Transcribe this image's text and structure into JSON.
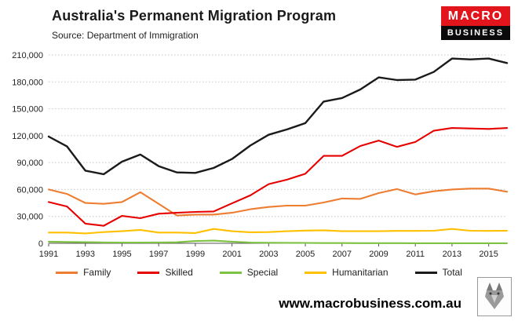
{
  "header": {
    "title": "Australia's Permanent Migration Program",
    "subtitle": "Source: Department of Immigration",
    "logo": {
      "line1": "MACRO",
      "line2": "BUSINESS"
    }
  },
  "footer": {
    "website": "www.macrobusiness.com.au"
  },
  "colors": {
    "logo_red": "#e2151c",
    "logo_black": "#0a0a0a",
    "family": "#ed7d31",
    "skilled": "#e60000",
    "special": "#7dc242",
    "humanitarian": "#ffc000",
    "total": "#1a1a1a",
    "grid": "#c8c8c8",
    "axis": "#555555"
  },
  "chart_data": {
    "type": "line",
    "title": "Australia's Permanent Migration Program",
    "subtitle": "Source: Department of Immigration",
    "x": [
      1991,
      1992,
      1993,
      1994,
      1995,
      1996,
      1997,
      1998,
      1999,
      2000,
      2001,
      2002,
      2003,
      2004,
      2005,
      2006,
      2007,
      2008,
      2009,
      2010,
      2011,
      2012,
      2013,
      2014,
      2015,
      2016
    ],
    "x_tick_labels": [
      "1991",
      "1993",
      "1995",
      "1997",
      "1999",
      "2001",
      "2003",
      "2005",
      "2007",
      "2009",
      "2011",
      "2013",
      "2015"
    ],
    "ylim": [
      0,
      210000
    ],
    "ytick_interval": 30000,
    "grid": true,
    "legend_position": "bottom",
    "series": [
      {
        "name": "Family",
        "color": "#ed7d31",
        "values": [
          60000,
          55000,
          45000,
          44000,
          46000,
          57000,
          44000,
          31000,
          32000,
          32000,
          34000,
          38000,
          40500,
          42000,
          42000,
          45500,
          50000,
          49500,
          56000,
          60500,
          54500,
          58000,
          60000,
          61000,
          61000,
          57500
        ]
      },
      {
        "name": "Skilled",
        "color": "#e60000",
        "values": [
          46000,
          41000,
          22000,
          19500,
          30500,
          28000,
          33000,
          34000,
          35000,
          35500,
          44500,
          53500,
          66000,
          71000,
          77500,
          97500,
          97500,
          108500,
          114500,
          107500,
          113000,
          125500,
          128500,
          128000,
          127500,
          128500
        ]
      },
      {
        "name": "Special",
        "color": "#7dc242",
        "values": [
          1800,
          1500,
          1200,
          1000,
          900,
          900,
          1000,
          1100,
          2500,
          3000,
          1800,
          900,
          600,
          500,
          400,
          300,
          300,
          200,
          200,
          150,
          100,
          100,
          100,
          100,
          100,
          100
        ]
      },
      {
        "name": "Humanitarian",
        "color": "#ffc000",
        "values": [
          12000,
          12000,
          11000,
          12500,
          13500,
          15000,
          12000,
          12000,
          11500,
          16000,
          13500,
          12300,
          12500,
          13500,
          14200,
          14500,
          13500,
          13500,
          13500,
          13800,
          13800,
          14000,
          16000,
          14000,
          13800,
          14000
        ]
      },
      {
        "name": "Total",
        "color": "#1a1a1a",
        "values": [
          119000,
          108000,
          81000,
          77000,
          91000,
          99000,
          86000,
          79000,
          78500,
          84000,
          94000,
          109000,
          121000,
          127000,
          134000,
          158000,
          162000,
          171500,
          185000,
          182000,
          182500,
          191000,
          206000,
          205000,
          206000,
          201000
        ]
      }
    ]
  }
}
